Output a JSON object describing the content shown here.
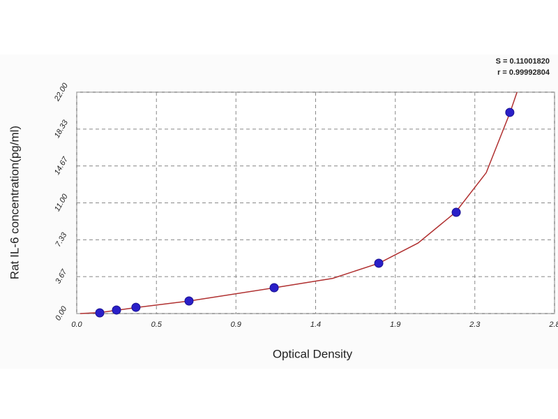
{
  "chart_data": {
    "type": "scatter",
    "annotations": [
      "S = 0.11001820",
      "r = 0.99992804"
    ],
    "x_label": "Optical Density",
    "y_label": "Rat  IL-6 concentration(pg/ml)",
    "x": [
      0.135,
      0.233,
      0.347,
      0.658,
      1.157,
      1.77,
      2.224,
      2.538
    ],
    "values": [
      0.07,
      0.35,
      0.62,
      1.25,
      2.57,
      5.0,
      10.06,
      19.99
    ],
    "color": "#2a1fc8",
    "fit_x": [
      0.02,
      0.135,
      0.35,
      0.66,
      1.16,
      1.5,
      1.77,
      2.0,
      2.22,
      2.4,
      2.54,
      2.58
    ],
    "fit_y": [
      0.0,
      0.1,
      0.6,
      1.25,
      2.57,
      3.5,
      5.0,
      7.0,
      10.06,
      14.0,
      20.0,
      22.0
    ],
    "fit_color": "#b03030",
    "xlim": [
      0,
      2.8
    ],
    "ylim": [
      0,
      22
    ],
    "xticks": [
      {
        "value": 0,
        "label": "0.0"
      },
      {
        "value": 0.467,
        "label": "0.5"
      },
      {
        "value": 0.933,
        "label": "0.9"
      },
      1.4,
      {
        "value": 1.867,
        "label": "1.9"
      },
      {
        "value": 2.333,
        "label": "2.3"
      },
      2.8
    ],
    "yticks": [
      {
        "value": 0,
        "label": "0.00"
      },
      3.67,
      7.33,
      {
        "value": 11,
        "label": "11.00"
      },
      14.67,
      18.33,
      {
        "value": 22,
        "label": "22.00"
      }
    ],
    "grid": true
  }
}
